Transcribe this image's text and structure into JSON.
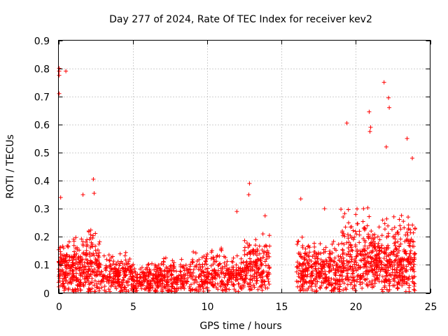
{
  "chart_data": {
    "type": "scatter",
    "title": "Day 277 of 2024, Rate Of TEC Index for receiver kev2",
    "xlabel": "GPS time / hours",
    "ylabel": "ROTI / TECUs",
    "xlim": [
      0,
      25
    ],
    "ylim": [
      0,
      0.9
    ],
    "xticks": [
      0,
      5,
      10,
      15,
      20,
      25
    ],
    "xtick_labels": [
      "0",
      "5",
      "10",
      "15",
      "20",
      "25"
    ],
    "yticks": [
      0,
      0.1,
      0.2,
      0.3,
      0.4,
      0.5,
      0.6,
      0.7,
      0.8,
      0.9
    ],
    "ytick_labels": [
      "0",
      "0.1",
      "0.2",
      "0.3",
      "0.4",
      "0.5",
      "0.6",
      "0.7",
      "0.8",
      "0.9"
    ],
    "grid": true,
    "marker": "+",
    "color": "#ff0000",
    "data_gap_hours": [
      14.2,
      16.0
    ],
    "notable_points": [
      {
        "x": 0.05,
        "y": 0.8
      },
      {
        "x": 0.05,
        "y": 0.79
      },
      {
        "x": 0.05,
        "y": 0.775
      },
      {
        "x": 0.5,
        "y": 0.79
      },
      {
        "x": 0.05,
        "y": 0.71
      },
      {
        "x": 0.15,
        "y": 0.34
      },
      {
        "x": 2.35,
        "y": 0.405
      },
      {
        "x": 2.4,
        "y": 0.355
      },
      {
        "x": 1.65,
        "y": 0.35
      },
      {
        "x": 12.85,
        "y": 0.39
      },
      {
        "x": 12.8,
        "y": 0.35
      },
      {
        "x": 12.0,
        "y": 0.29
      },
      {
        "x": 13.9,
        "y": 0.275
      },
      {
        "x": 16.3,
        "y": 0.335
      },
      {
        "x": 17.9,
        "y": 0.3
      },
      {
        "x": 19.4,
        "y": 0.605
      },
      {
        "x": 21.9,
        "y": 0.75
      },
      {
        "x": 22.2,
        "y": 0.695
      },
      {
        "x": 22.25,
        "y": 0.66
      },
      {
        "x": 20.9,
        "y": 0.645
      },
      {
        "x": 21.0,
        "y": 0.59
      },
      {
        "x": 20.95,
        "y": 0.575
      },
      {
        "x": 23.45,
        "y": 0.55
      },
      {
        "x": 22.05,
        "y": 0.52
      },
      {
        "x": 23.8,
        "y": 0.48
      }
    ],
    "bands": [
      {
        "x_start": 0.0,
        "x_end": 1.5,
        "y_base": 0.1,
        "y_spread": 0.1,
        "density": 200
      },
      {
        "x_start": 1.5,
        "x_end": 2.8,
        "y_base": 0.1,
        "y_spread": 0.13,
        "density": 160
      },
      {
        "x_start": 2.8,
        "x_end": 5.0,
        "y_base": 0.07,
        "y_spread": 0.07,
        "density": 200
      },
      {
        "x_start": 5.0,
        "x_end": 7.0,
        "y_base": 0.05,
        "y_spread": 0.06,
        "density": 180
      },
      {
        "x_start": 7.0,
        "x_end": 9.0,
        "y_base": 0.05,
        "y_spread": 0.08,
        "density": 160
      },
      {
        "x_start": 9.0,
        "x_end": 11.0,
        "y_base": 0.06,
        "y_spread": 0.1,
        "density": 160
      },
      {
        "x_start": 11.0,
        "x_end": 12.5,
        "y_base": 0.06,
        "y_spread": 0.08,
        "density": 130
      },
      {
        "x_start": 12.5,
        "x_end": 14.2,
        "y_base": 0.09,
        "y_spread": 0.12,
        "density": 180
      },
      {
        "x_start": 16.0,
        "x_end": 17.5,
        "y_base": 0.08,
        "y_spread": 0.12,
        "density": 170
      },
      {
        "x_start": 17.5,
        "x_end": 19.0,
        "y_base": 0.08,
        "y_spread": 0.1,
        "density": 150
      },
      {
        "x_start": 19.0,
        "x_end": 21.0,
        "y_base": 0.12,
        "y_spread": 0.18,
        "density": 230
      },
      {
        "x_start": 21.0,
        "x_end": 22.5,
        "y_base": 0.1,
        "y_spread": 0.16,
        "density": 200
      },
      {
        "x_start": 22.5,
        "x_end": 24.0,
        "y_base": 0.1,
        "y_spread": 0.17,
        "density": 210
      }
    ]
  }
}
